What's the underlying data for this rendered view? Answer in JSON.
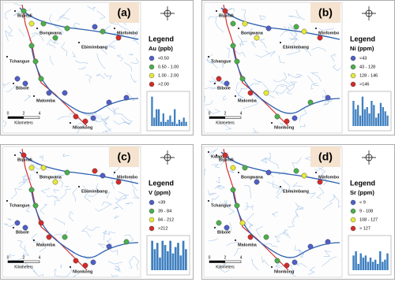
{
  "panels": [
    {
      "label": "(a)",
      "legend_title": "Legend",
      "element": "Au (ppb)",
      "classes": [
        {
          "label": "<0.50",
          "color": "#4f5fc9"
        },
        {
          "label": "0.50 - 1.00",
          "color": "#4cae4c"
        },
        {
          "label": "1.00 - 2.00",
          "color": "#e8e83a"
        },
        {
          "label": ">2.00",
          "color": "#d32b2b"
        }
      ],
      "places": [
        "Bipindi",
        "Bongwana",
        "Minfombo",
        "Ebimimbang",
        "Tchangue",
        "Bibole",
        "Malomba",
        "Nlonkong"
      ],
      "histogram": {
        "values": [
          14,
          4,
          8,
          8,
          2,
          6,
          2,
          3,
          5,
          2,
          8,
          1,
          3,
          2,
          4,
          2
        ],
        "ylim": [
          0,
          15
        ]
      }
    },
    {
      "label": "(b)",
      "legend_title": "Legend",
      "element": "Ni (ppm)",
      "classes": [
        {
          "label": "<43",
          "color": "#4f5fc9"
        },
        {
          "label": "43 - 128",
          "color": "#4cae4c"
        },
        {
          "label": "128 - 146",
          "color": "#e8e83a"
        },
        {
          "label": ">146",
          "color": "#d32b2b"
        }
      ],
      "places": [
        "Bipindi",
        "Bongwana",
        "Minfombo",
        "Ebimimbang",
        "Tchangue",
        "Bibole",
        "Malomba",
        "Nlonkong"
      ],
      "histogram": {
        "values": [
          12,
          8,
          10,
          5,
          14,
          8,
          9,
          6,
          12,
          10,
          4,
          6,
          11,
          9,
          7,
          5
        ],
        "ylim": [
          0,
          15
        ]
      }
    },
    {
      "label": "(c)",
      "legend_title": "Legend",
      "element": "V (ppm)",
      "classes": [
        {
          "label": "<39",
          "color": "#4f5fc9"
        },
        {
          "label": "39 - 84",
          "color": "#4cae4c"
        },
        {
          "label": "84 - 212",
          "color": "#e8e83a"
        },
        {
          "label": ">212",
          "color": "#d32b2b"
        }
      ],
      "places": [
        "Bipindi",
        "Bongwana",
        "Minfombo",
        "Ebimimbang",
        "Tchangue",
        "Bibole",
        "Malomba",
        "Nlonkong"
      ],
      "histogram": {
        "values": [
          14,
          10,
          13,
          6,
          14,
          12,
          9,
          14,
          8,
          11,
          13,
          7,
          14,
          10
        ],
        "ylim": [
          0,
          15
        ]
      }
    },
    {
      "label": "(d)",
      "legend_title": "Legend",
      "element": "Sr (ppm)",
      "classes": [
        {
          "label": "< 9",
          "color": "#4f5fc9"
        },
        {
          "label": "9 - 108",
          "color": "#4cae4c"
        },
        {
          "label": "108 - 127",
          "color": "#e8e83a"
        },
        {
          "label": "> 127",
          "color": "#d32b2b"
        }
      ],
      "places": [
        "Bipindi",
        "Bongwana",
        "Minfombo",
        "Ebimimbang",
        "Tchangue",
        "Bibole",
        "Malomba",
        "Nlonkong",
        "Kwambo"
      ],
      "histogram": {
        "values": [
          7,
          9,
          3,
          8,
          6,
          7,
          4,
          6,
          4,
          5,
          3,
          9,
          4,
          5,
          8
        ],
        "ylim": [
          0,
          15
        ]
      }
    }
  ],
  "scale": {
    "labels": [
      "0",
      "2",
      "4"
    ],
    "unit": "Kilometers"
  }
}
